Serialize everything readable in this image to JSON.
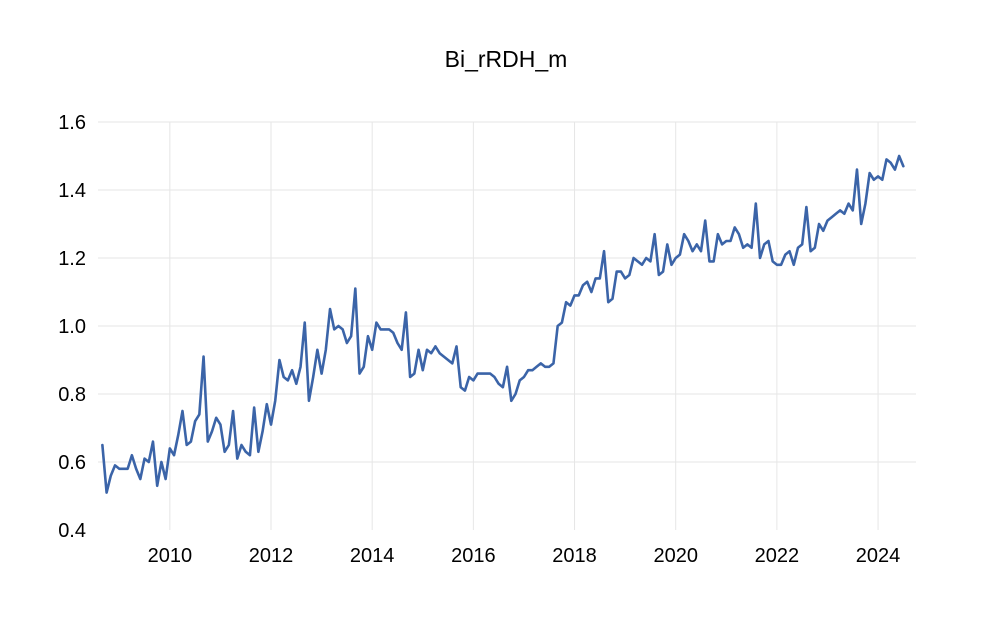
{
  "chart_data": {
    "type": "line",
    "title": "Bi_rRDH_m",
    "xlabel": "",
    "ylabel": "",
    "grid": true,
    "legend": "none",
    "line_color": "#3b64a8",
    "xlim": [
      2008.58,
      2024.75
    ],
    "ylim": [
      0.4,
      1.6
    ],
    "x_ticks": [
      "2010",
      "2012",
      "2014",
      "2016",
      "2018",
      "2020",
      "2022",
      "2024"
    ],
    "y_ticks": [
      "0.4",
      "0.6",
      "0.8",
      "1.0",
      "1.2",
      "1.4",
      "1.6"
    ],
    "start": "2008-09",
    "frequency": "monthly",
    "series": [
      {
        "values": [
          0.65,
          0.51,
          0.56,
          0.59,
          0.58,
          0.58,
          0.58,
          0.62,
          0.58,
          0.55,
          0.61,
          0.6,
          0.66,
          0.53,
          0.6,
          0.55,
          0.64,
          0.62,
          0.68,
          0.75,
          0.65,
          0.66,
          0.72,
          0.74,
          0.91,
          0.66,
          0.69,
          0.73,
          0.71,
          0.63,
          0.65,
          0.75,
          0.61,
          0.65,
          0.63,
          0.62,
          0.76,
          0.63,
          0.69,
          0.77,
          0.71,
          0.78,
          0.9,
          0.85,
          0.84,
          0.87,
          0.83,
          0.88,
          1.01,
          0.78,
          0.85,
          0.93,
          0.86,
          0.93,
          1.05,
          0.99,
          1.0,
          0.99,
          0.95,
          0.97,
          1.11,
          0.86,
          0.88,
          0.97,
          0.93,
          1.01,
          0.99,
          0.99,
          0.99,
          0.98,
          0.95,
          0.93,
          1.04,
          0.85,
          0.86,
          0.93,
          0.87,
          0.93,
          0.92,
          0.94,
          0.92,
          0.91,
          0.9,
          0.89,
          0.94,
          0.82,
          0.81,
          0.85,
          0.84,
          0.86,
          0.86,
          0.86,
          0.86,
          0.85,
          0.83,
          0.82,
          0.88,
          0.78,
          0.8,
          0.84,
          0.85,
          0.87,
          0.87,
          0.88,
          0.89,
          0.88,
          0.88,
          0.89,
          1.0,
          1.01,
          1.07,
          1.06,
          1.09,
          1.09,
          1.12,
          1.13,
          1.1,
          1.14,
          1.14,
          1.22,
          1.07,
          1.08,
          1.16,
          1.16,
          1.14,
          1.15,
          1.2,
          1.19,
          1.18,
          1.2,
          1.19,
          1.27,
          1.15,
          1.16,
          1.24,
          1.18,
          1.2,
          1.21,
          1.27,
          1.25,
          1.22,
          1.24,
          1.22,
          1.31,
          1.19,
          1.19,
          1.27,
          1.24,
          1.25,
          1.25,
          1.29,
          1.27,
          1.23,
          1.24,
          1.23,
          1.36,
          1.2,
          1.24,
          1.25,
          1.19,
          1.18,
          1.18,
          1.21,
          1.22,
          1.18,
          1.23,
          1.24,
          1.35,
          1.22,
          1.23,
          1.3,
          1.28,
          1.31,
          1.32,
          1.33,
          1.34,
          1.33,
          1.36,
          1.34,
          1.46,
          1.3,
          1.36,
          1.45,
          1.43,
          1.44,
          1.43,
          1.49,
          1.48,
          1.46,
          1.5,
          1.47
        ]
      }
    ]
  }
}
